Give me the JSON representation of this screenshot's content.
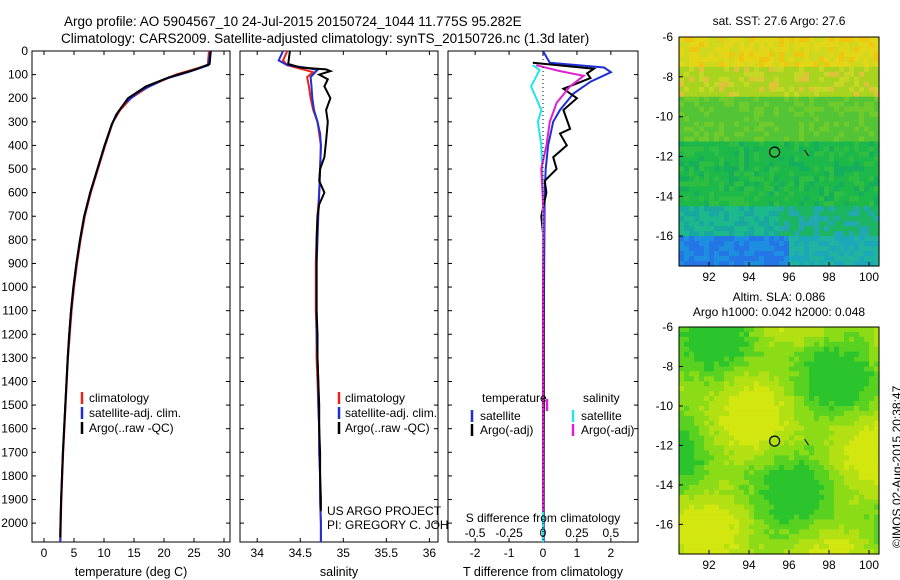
{
  "header": {
    "line1": "Argo profile: AO 5904567_10 24-Jul-2015 20150724_1044 11.775S 95.282E",
    "line2": "Climatology: CARS2009. Satellite-adjusted climatology: synTS_20150726.nc (1.3d later)"
  },
  "colors": {
    "climatology": "#e8231a",
    "satellite": "#1f2fd6",
    "argo": "#000000",
    "magenta": "#e020d0",
    "cyan": "#22e5ec"
  },
  "chart_data": [
    {
      "type": "line",
      "id": "temperature",
      "xlabel": "temperature (deg C)",
      "ylabel": "",
      "xlim": [
        -2,
        31
      ],
      "ylim": [
        2080,
        0
      ],
      "xticks": [
        0,
        5,
        10,
        15,
        20,
        25,
        30
      ],
      "yticks": [
        0,
        100,
        200,
        300,
        400,
        500,
        600,
        700,
        800,
        900,
        1000,
        1100,
        1200,
        1300,
        1400,
        1500,
        1600,
        1700,
        1800,
        1900,
        2000
      ],
      "legend": {
        "placement": "lower-center",
        "entries": [
          "climatology",
          "satellite-adj. clim.",
          "Argo(..raw -QC)"
        ]
      },
      "series": [
        {
          "name": "climatology",
          "color": "climatology",
          "points": [
            [
              27.5,
              0
            ],
            [
              27.3,
              60
            ],
            [
              22,
              100
            ],
            [
              17.5,
              150
            ],
            [
              14.5,
              200
            ],
            [
              12.7,
              250
            ],
            [
              11.5,
              300
            ],
            [
              10.2,
              400
            ],
            [
              9,
              500
            ],
            [
              7.8,
              600
            ],
            [
              6.8,
              700
            ],
            [
              6.1,
              800
            ],
            [
              5.5,
              900
            ],
            [
              5,
              1000
            ],
            [
              4.6,
              1100
            ],
            [
              4.3,
              1200
            ],
            [
              4,
              1300
            ],
            [
              3.8,
              1400
            ],
            [
              3.6,
              1500
            ],
            [
              3.4,
              1600
            ],
            [
              3.2,
              1700
            ],
            [
              3.05,
              1800
            ],
            [
              2.9,
              1900
            ],
            [
              2.8,
              2000
            ],
            [
              2.75,
              2080
            ]
          ]
        },
        {
          "name": "satellite",
          "color": "satellite",
          "points": [
            [
              27.7,
              0
            ],
            [
              27.4,
              60
            ],
            [
              24,
              90
            ],
            [
              20,
              120
            ],
            [
              16,
              170
            ],
            [
              13.5,
              220
            ],
            [
              12,
              270
            ],
            [
              11.2,
              320
            ],
            [
              10.1,
              400
            ],
            [
              8.9,
              500
            ],
            [
              7.7,
              600
            ],
            [
              6.7,
              700
            ],
            [
              6,
              800
            ],
            [
              5.4,
              900
            ],
            [
              4.9,
              1000
            ],
            [
              4.5,
              1100
            ],
            [
              4.2,
              1200
            ],
            [
              3.95,
              1300
            ],
            [
              3.75,
              1400
            ],
            [
              3.55,
              1500
            ],
            [
              3.35,
              1600
            ],
            [
              3.15,
              1700
            ],
            [
              3,
              1800
            ],
            [
              2.85,
              1900
            ],
            [
              2.75,
              2000
            ],
            [
              2.7,
              2080
            ]
          ]
        },
        {
          "name": "argo",
          "color": "argo",
          "points": [
            [
              27.8,
              0
            ],
            [
              27.6,
              55
            ],
            [
              25,
              80
            ],
            [
              21,
              110
            ],
            [
              17,
              150
            ],
            [
              14,
              200
            ],
            [
              12.3,
              260
            ],
            [
              11.3,
              310
            ],
            [
              10.1,
              400
            ],
            [
              8.9,
              500
            ],
            [
              7.7,
              600
            ],
            [
              6.7,
              700
            ],
            [
              6,
              800
            ],
            [
              5.4,
              900
            ],
            [
              4.9,
              1000
            ],
            [
              4.5,
              1100
            ],
            [
              4.2,
              1200
            ],
            [
              3.95,
              1300
            ],
            [
              3.75,
              1400
            ],
            [
              3.55,
              1500
            ],
            [
              3.35,
              1600
            ],
            [
              3.15,
              1700
            ],
            [
              3,
              1800
            ],
            [
              2.85,
              1900
            ],
            [
              2.75,
              2000
            ],
            [
              2.7,
              2060
            ]
          ]
        }
      ]
    },
    {
      "type": "line",
      "id": "salinity",
      "xlabel": "salinity",
      "xlim": [
        33.8,
        36.1
      ],
      "ylim": [
        2080,
        0
      ],
      "xticks": [
        34,
        34.5,
        35,
        35.5,
        36
      ],
      "legend": {
        "placement": "lower-center",
        "entries": [
          "climatology",
          "satellite-adj. clim.",
          "Argo(..raw -QC)"
        ]
      },
      "annotations": [
        "US ARGO PROJECT",
        "PI: GREGORY C. JOHNSON"
      ],
      "series": [
        {
          "name": "climatology",
          "color": "climatology",
          "points": [
            [
              34.35,
              0
            ],
            [
              34.3,
              40
            ],
            [
              34.35,
              60
            ],
            [
              34.5,
              75
            ],
            [
              34.65,
              90
            ],
            [
              34.58,
              110
            ],
            [
              34.6,
              150
            ],
            [
              34.62,
              200
            ],
            [
              34.65,
              250
            ],
            [
              34.7,
              300
            ],
            [
              34.72,
              350
            ],
            [
              34.74,
              400
            ],
            [
              34.73,
              500
            ],
            [
              34.72,
              600
            ],
            [
              34.7,
              700
            ],
            [
              34.69,
              800
            ],
            [
              34.68,
              900
            ],
            [
              34.68,
              1000
            ],
            [
              34.68,
              1100
            ],
            [
              34.69,
              1200
            ],
            [
              34.69,
              1300
            ],
            [
              34.7,
              1400
            ],
            [
              34.71,
              1500
            ],
            [
              34.72,
              1600
            ],
            [
              34.72,
              1700
            ],
            [
              34.73,
              1800
            ],
            [
              34.73,
              1900
            ],
            [
              34.74,
              2000
            ],
            [
              34.74,
              2080
            ]
          ]
        },
        {
          "name": "satellite",
          "color": "satellite",
          "points": [
            [
              34.3,
              0
            ],
            [
              34.25,
              40
            ],
            [
              34.35,
              60
            ],
            [
              34.55,
              70
            ],
            [
              34.7,
              80
            ],
            [
              34.62,
              110
            ],
            [
              34.63,
              150
            ],
            [
              34.64,
              200
            ],
            [
              34.66,
              250
            ],
            [
              34.7,
              300
            ],
            [
              34.73,
              350
            ],
            [
              34.74,
              400
            ],
            [
              34.73,
              500
            ],
            [
              34.72,
              600
            ],
            [
              34.71,
              700
            ],
            [
              34.7,
              800
            ],
            [
              34.69,
              900
            ],
            [
              34.69,
              1000
            ],
            [
              34.69,
              1100
            ],
            [
              34.69,
              1200
            ],
            [
              34.7,
              1300
            ],
            [
              34.71,
              1400
            ],
            [
              34.71,
              1500
            ],
            [
              34.72,
              1600
            ],
            [
              34.72,
              1700
            ],
            [
              34.73,
              1800
            ],
            [
              34.73,
              1900
            ],
            [
              34.74,
              2000
            ],
            [
              34.74,
              2080
            ]
          ]
        },
        {
          "name": "argo",
          "color": "argo",
          "points": [
            [
              34.38,
              0
            ],
            [
              34.36,
              55
            ],
            [
              34.5,
              70
            ],
            [
              34.8,
              78
            ],
            [
              34.85,
              85
            ],
            [
              34.72,
              100
            ],
            [
              34.82,
              120
            ],
            [
              34.78,
              150
            ],
            [
              34.85,
              200
            ],
            [
              34.8,
              250
            ],
            [
              34.82,
              300
            ],
            [
              34.8,
              380
            ],
            [
              34.78,
              450
            ],
            [
              34.73,
              500
            ],
            [
              34.72,
              550
            ],
            [
              34.78,
              600
            ],
            [
              34.72,
              650
            ],
            [
              34.7,
              700
            ],
            [
              34.69,
              800
            ],
            [
              34.69,
              900
            ],
            [
              34.69,
              1000
            ],
            [
              34.69,
              1100
            ],
            [
              34.7,
              1200
            ],
            [
              34.7,
              1300
            ],
            [
              34.71,
              1400
            ],
            [
              34.72,
              1500
            ],
            [
              34.72,
              1600
            ],
            [
              34.73,
              1700
            ],
            [
              34.73,
              1800
            ],
            [
              34.74,
              1900
            ],
            [
              34.74,
              1950
            ]
          ]
        }
      ]
    },
    {
      "type": "line",
      "id": "differences",
      "xlabel": "T difference from climatology",
      "top_label": "S difference from climatology",
      "xlim": [
        -2.8,
        2.8
      ],
      "ylim": [
        2080,
        0
      ],
      "xticks": [
        -2,
        -1,
        0,
        1,
        2
      ],
      "top_ticks": [
        "-0.5",
        "-0.25",
        "0",
        "0.25",
        "0.5"
      ],
      "legend": {
        "placement": "lower-center",
        "headings": [
          "temperature",
          "salinity"
        ],
        "entries": [
          "satellite",
          "Argo(-adj)",
          "satellite",
          "Argo(-adj)"
        ]
      },
      "series": [
        {
          "name": "T satellite",
          "color": "satellite",
          "points": [
            [
              0,
              0
            ],
            [
              0.2,
              50
            ],
            [
              1.8,
              70
            ],
            [
              2,
              90
            ],
            [
              1.4,
              130
            ],
            [
              0.9,
              180
            ],
            [
              0.5,
              250
            ],
            [
              0.3,
              300
            ],
            [
              0.15,
              400
            ],
            [
              0.08,
              500
            ],
            [
              0.05,
              600
            ],
            [
              0.04,
              800
            ],
            [
              0.03,
              1000
            ],
            [
              0.02,
              1500
            ],
            [
              0.02,
              2080
            ]
          ]
        },
        {
          "name": "T argo",
          "color": "argo",
          "points": [
            [
              -0.3,
              50
            ],
            [
              1.5,
              75
            ],
            [
              1.3,
              95
            ],
            [
              1.4,
              115
            ],
            [
              0.6,
              160
            ],
            [
              1,
              200
            ],
            [
              0.6,
              250
            ],
            [
              0.8,
              330
            ],
            [
              0.5,
              350
            ],
            [
              0.7,
              400
            ],
            [
              0.3,
              450
            ],
            [
              0.4,
              500
            ],
            [
              0.05,
              550
            ],
            [
              0.1,
              600
            ],
            [
              -0.05,
              700
            ],
            [
              0.02,
              800
            ],
            [
              0.01,
              1000
            ],
            [
              0.02,
              1500
            ],
            [
              0.01,
              2000
            ]
          ]
        },
        {
          "name": "S satellite",
          "color": "cyan",
          "points": [
            [
              -0.3,
              60
            ],
            [
              -0.1,
              80
            ],
            [
              -0.35,
              150
            ],
            [
              -0.05,
              250
            ],
            [
              -0.15,
              300
            ],
            [
              -0.05,
              400
            ],
            [
              0,
              600
            ],
            [
              0,
              1000
            ],
            [
              0,
              2080
            ]
          ]
        },
        {
          "name": "S argo",
          "color": "magenta",
          "points": [
            [
              -0.2,
              60
            ],
            [
              0.5,
              85
            ],
            [
              1.2,
              105
            ],
            [
              0.8,
              150
            ],
            [
              0.4,
              220
            ],
            [
              0.2,
              300
            ],
            [
              0.1,
              400
            ],
            [
              -0.05,
              500
            ],
            [
              0.02,
              700
            ],
            [
              0,
              1000
            ],
            [
              0,
              1950
            ]
          ]
        }
      ]
    },
    {
      "type": "heatmap",
      "id": "sst_map",
      "title": "sat. SST: 27.6 Argo: 27.6",
      "xlim": [
        90.5,
        100.5
      ],
      "ylim": [
        -17.5,
        -6
      ],
      "xticks": [
        92,
        94,
        96,
        98,
        100
      ],
      "yticks": [
        -6,
        -8,
        -10,
        -12,
        -14,
        -16
      ],
      "marker": {
        "lon": 95.28,
        "lat": -11.78
      }
    },
    {
      "type": "heatmap",
      "id": "sla_map",
      "title": "Altim. SLA: 0.086",
      "subtitle": "Argo h1000: 0.042 h2000: 0.048",
      "xlim": [
        90.5,
        100.5
      ],
      "ylim": [
        -17.5,
        -6
      ],
      "xticks": [
        92,
        94,
        96,
        98,
        100
      ],
      "yticks": [
        -6,
        -8,
        -10,
        -12,
        -14,
        -16
      ],
      "marker": {
        "lon": 95.28,
        "lat": -11.78
      }
    }
  ],
  "credit": "©IMOS 02-Aug-2015 20:38:47"
}
